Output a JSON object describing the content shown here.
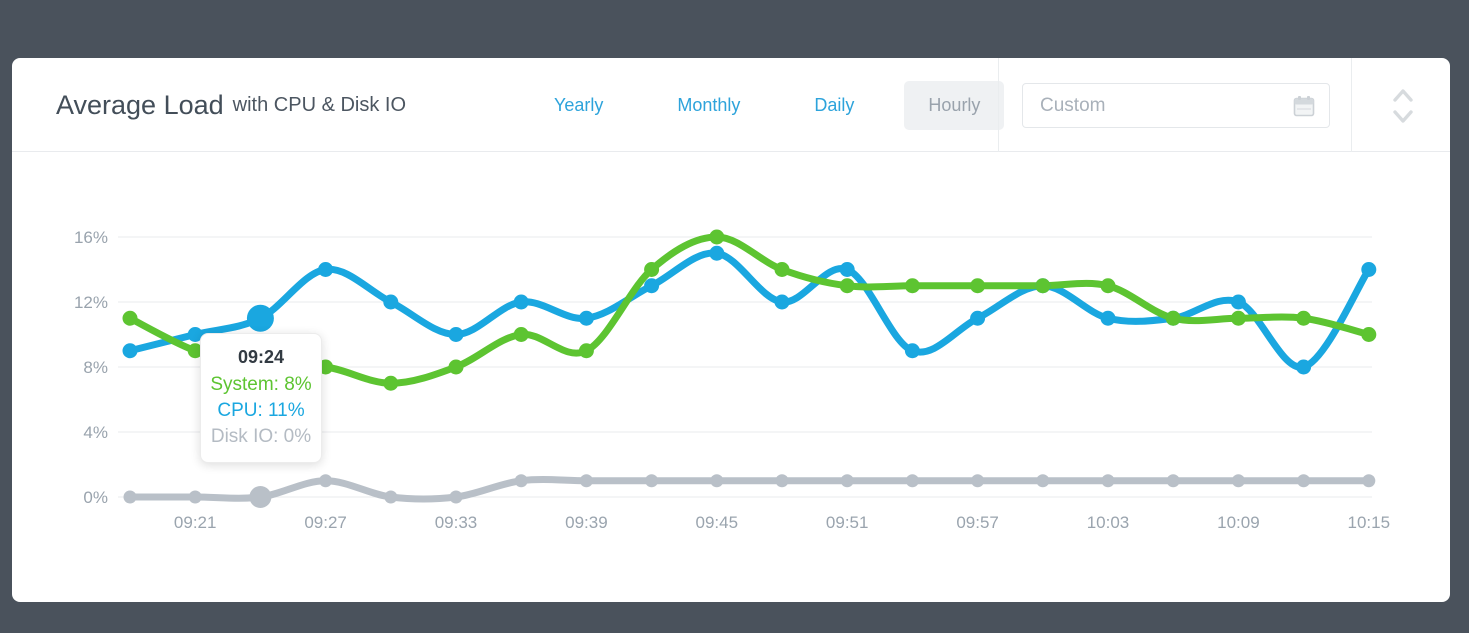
{
  "header": {
    "title": "Average Load",
    "subtitle": "with CPU & Disk IO",
    "tabs": [
      {
        "label": "Yearly",
        "active": false
      },
      {
        "label": "Monthly",
        "active": false
      },
      {
        "label": "Daily",
        "active": false
      },
      {
        "label": "Hourly",
        "active": true
      }
    ],
    "custom_placeholder": "Custom"
  },
  "tooltip": {
    "time": "09:24",
    "rows": [
      {
        "label": "System",
        "value": "8%",
        "color": "#5dc431"
      },
      {
        "label": "CPU",
        "value": "11%",
        "color": "#1aa7e0"
      },
      {
        "label": "Disk IO",
        "value": "0%",
        "color": "#b4bbc3"
      }
    ]
  },
  "colors": {
    "accent_blue": "#2da3db",
    "card_background": "#ffffff",
    "page_background": "#4a525c",
    "series_system_green": "#5dc431",
    "series_cpu_blue": "#1aa7e0",
    "series_diskio_gray": "#b9c0c8"
  },
  "chart_data": {
    "type": "line",
    "x": [
      "09:18",
      "09:21",
      "09:24",
      "09:27",
      "09:30",
      "09:33",
      "09:36",
      "09:39",
      "09:42",
      "09:45",
      "09:48",
      "09:51",
      "09:54",
      "09:57",
      "10:00",
      "10:03",
      "10:06",
      "10:09",
      "10:12",
      "10:15"
    ],
    "x_tick_labels": [
      "09:21",
      "09:27",
      "09:33",
      "09:39",
      "09:45",
      "09:51",
      "09:57",
      "10:03",
      "10:09",
      "10:15"
    ],
    "yticks": [
      0,
      4,
      8,
      12,
      16
    ],
    "ytick_labels": [
      "0%",
      "4%",
      "8%",
      "12%",
      "16%"
    ],
    "ylim": [
      0,
      17
    ],
    "grid": true,
    "legend_position": "none",
    "title": "Average Load with CPU & Disk IO",
    "xlabel": "",
    "ylabel": "",
    "series": [
      {
        "name": "System",
        "color": "#5dc431",
        "values": [
          11,
          9,
          8,
          8,
          7,
          8,
          10,
          9,
          14,
          16,
          14,
          13,
          13,
          13,
          13,
          13,
          11,
          11,
          11,
          10
        ]
      },
      {
        "name": "CPU",
        "color": "#1aa7e0",
        "values": [
          9,
          10,
          11,
          14,
          12,
          10,
          12,
          11,
          13,
          15,
          12,
          14,
          9,
          11,
          13,
          11,
          11,
          12,
          8,
          14
        ]
      },
      {
        "name": "Disk IO",
        "color": "#b9c0c8",
        "values": [
          0,
          0,
          0,
          1,
          0,
          0,
          1,
          1,
          1,
          1,
          1,
          1,
          1,
          1,
          1,
          1,
          1,
          1,
          1,
          1
        ]
      }
    ],
    "highlight": {
      "index": 2,
      "series": [
        "CPU",
        "Disk IO"
      ]
    }
  }
}
